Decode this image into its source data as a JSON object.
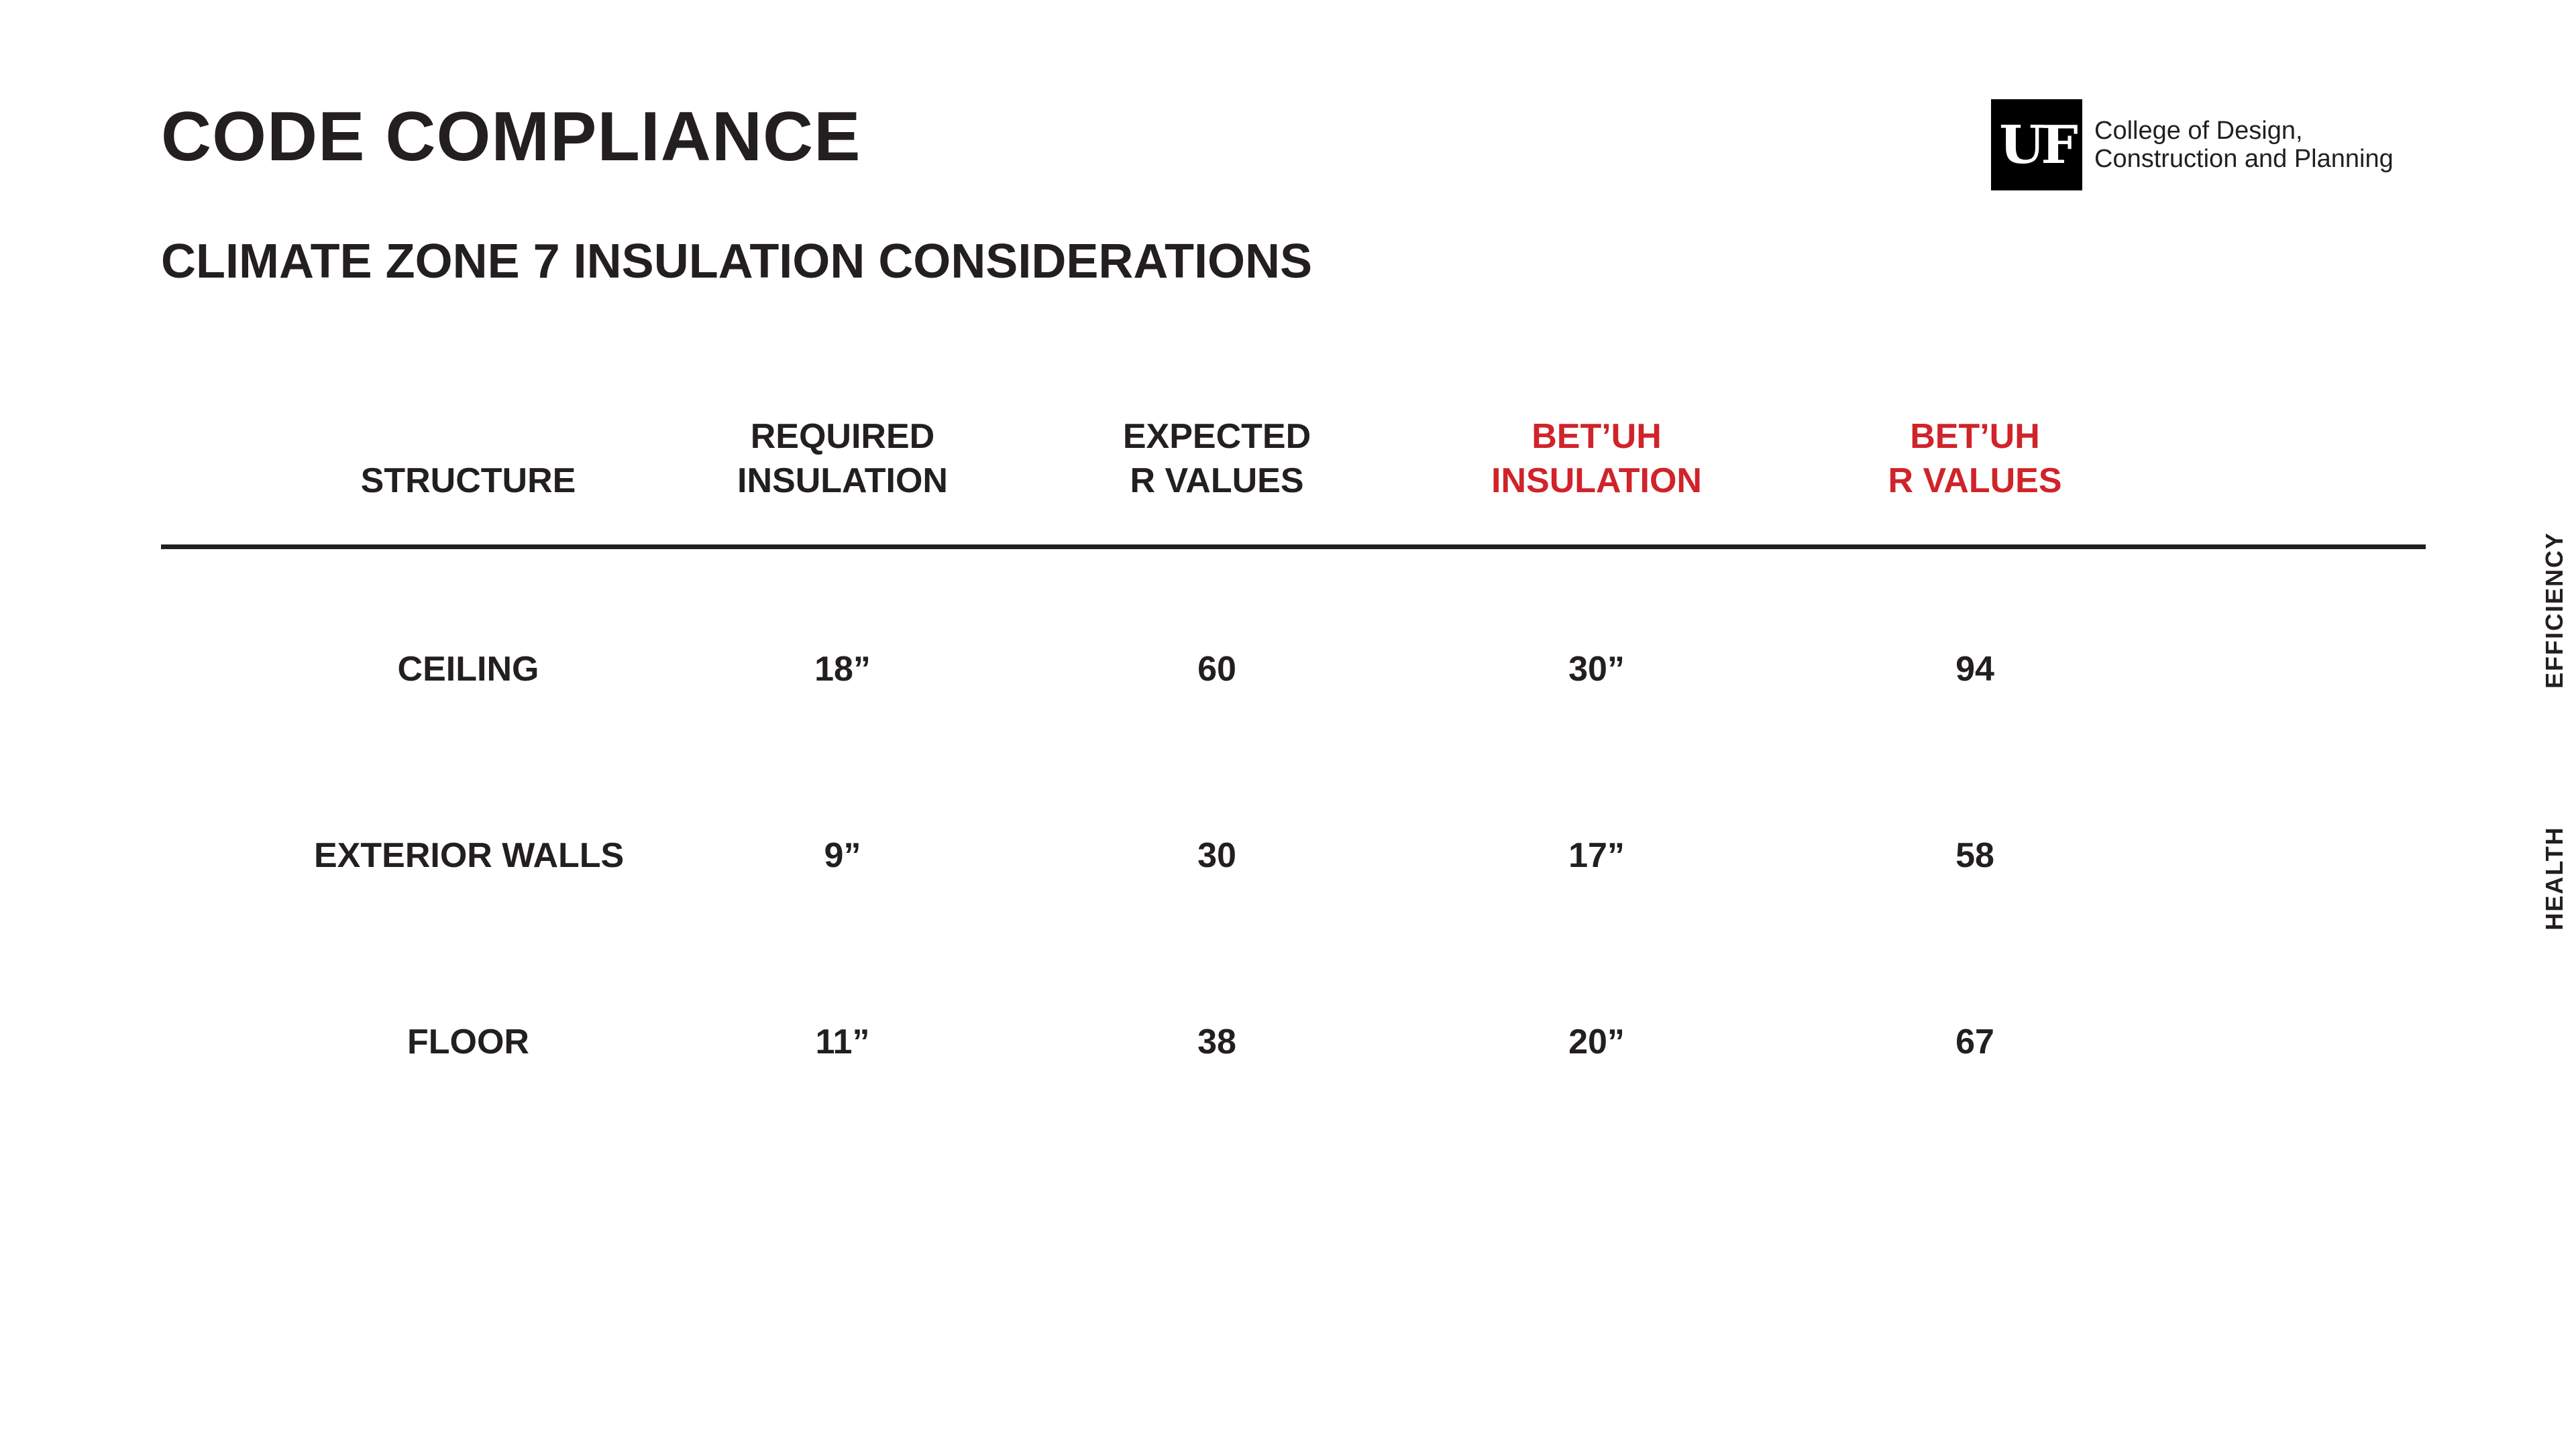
{
  "slide": {
    "title": "CODE COMPLIANCE",
    "subtitle": "CLIMATE ZONE 7 INSULATION CONSIDERATIONS"
  },
  "logo": {
    "mark": "UF",
    "line1": "College of Design,",
    "line2": "Construction and Planning"
  },
  "colors": {
    "text": "#231f20",
    "accent": "#d0232a"
  },
  "table": {
    "headers": [
      {
        "lines": [
          "STRUCTURE"
        ],
        "accent": false
      },
      {
        "lines": [
          "REQUIRED",
          "INSULATION"
        ],
        "accent": false
      },
      {
        "lines": [
          "EXPECTED",
          "R VALUES"
        ],
        "accent": false
      },
      {
        "lines": [
          "BET’UH",
          "INSULATION"
        ],
        "accent": true
      },
      {
        "lines": [
          "BET’UH",
          "R VALUES"
        ],
        "accent": true
      }
    ],
    "rows": [
      {
        "structure": "CEILING",
        "required": "18”",
        "expected": "60",
        "betuh_insulation": "30”",
        "betuh_r": "94"
      },
      {
        "structure": "EXTERIOR WALLS",
        "required": "9”",
        "expected": "30",
        "betuh_insulation": "17”",
        "betuh_r": "58"
      },
      {
        "structure": "FLOOR",
        "required": "11”",
        "expected": "38",
        "betuh_insulation": "20”",
        "betuh_r": "67"
      }
    ]
  },
  "side_tabs": {
    "efficiency": "EFFICIENCY",
    "health": "HEALTH"
  }
}
